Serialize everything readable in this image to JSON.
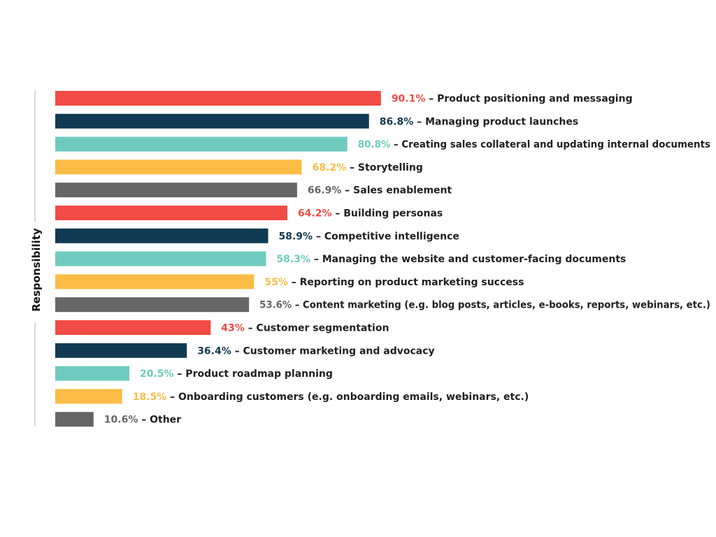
{
  "colors": {
    "red": "#f24b45",
    "navy": "#123a52",
    "teal": "#6fcbbd",
    "yellow": "#fbbc47",
    "gray": "#666666",
    "axis": "#cccccc",
    "text": "#1f1f1f"
  },
  "chart_data": {
    "type": "bar",
    "orientation": "horizontal",
    "ylabel": "Responsibility",
    "xlabel": "",
    "xlim": [
      0,
      100
    ],
    "grid": false,
    "legend": "none",
    "bars": [
      {
        "value": 90.1,
        "pct": "90.1%",
        "label": "– Product positioning and messaging",
        "color": "red"
      },
      {
        "value": 86.8,
        "pct": "86.8%",
        "label": "– Managing product launches",
        "color": "navy"
      },
      {
        "value": 80.8,
        "pct": "80.8%",
        "label": "– Creating sales collateral and updating internal documents",
        "color": "teal"
      },
      {
        "value": 68.2,
        "pct": "68.2%",
        "label": "– Storytelling",
        "color": "yellow"
      },
      {
        "value": 66.9,
        "pct": "66.9%",
        "label": "– Sales enablement",
        "color": "gray"
      },
      {
        "value": 64.2,
        "pct": "64.2%",
        "label": "– Building personas",
        "color": "red"
      },
      {
        "value": 58.9,
        "pct": "58.9%",
        "label": "– Competitive intelligence",
        "color": "navy"
      },
      {
        "value": 58.3,
        "pct": "58.3%",
        "label": "– Managing the website and customer-facing documents",
        "color": "teal"
      },
      {
        "value": 55,
        "pct": "55%",
        "label": "– Reporting on product marketing success",
        "color": "yellow"
      },
      {
        "value": 53.6,
        "pct": "53.6%",
        "label": "– Content marketing (e.g. blog posts, articles, e-books, reports, webinars, etc.)",
        "color": "gray"
      },
      {
        "value": 43,
        "pct": "43%",
        "label": "– Customer segmentation",
        "color": "red"
      },
      {
        "value": 36.4,
        "pct": "36.4%",
        "label": "– Customer marketing and advocacy",
        "color": "navy"
      },
      {
        "value": 20.5,
        "pct": "20.5%",
        "label": "– Product roadmap planning",
        "color": "teal"
      },
      {
        "value": 18.5,
        "pct": "18.5%",
        "label": "– Onboarding customers (e.g. onboarding emails, webinars, etc.)",
        "color": "yellow"
      },
      {
        "value": 10.6,
        "pct": "10.6%",
        "label": "– Other",
        "color": "gray"
      }
    ]
  }
}
